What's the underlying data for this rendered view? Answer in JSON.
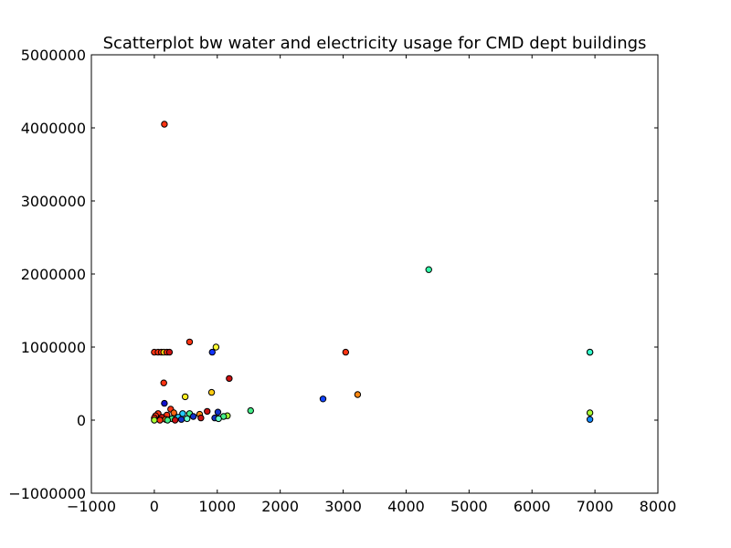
{
  "chart_data": {
    "type": "scatter",
    "title": "Scatterplot bw water and electricity usage for CMD dept buildings",
    "xlabel": "",
    "ylabel": "",
    "xlim": [
      -1000,
      8000
    ],
    "ylim": [
      -1000000,
      5000000
    ],
    "x_ticks": [
      -1000,
      0,
      1000,
      2000,
      3000,
      4000,
      5000,
      6000,
      7000,
      8000
    ],
    "x_tick_labels": [
      "−1000",
      "0",
      "1000",
      "2000",
      "3000",
      "4000",
      "5000",
      "6000",
      "7000",
      "8000"
    ],
    "y_ticks": [
      -1000000,
      0,
      1000000,
      2000000,
      3000000,
      4000000,
      5000000
    ],
    "y_tick_labels": [
      "−1000000",
      "0",
      "1000000",
      "2000000",
      "3000000",
      "4000000",
      "5000000"
    ],
    "grid": false,
    "legend": "none",
    "points": [
      {
        "x": 160,
        "y": 4050000,
        "color": "#ff3311"
      },
      {
        "x": 4360,
        "y": 2060000,
        "color": "#33ffaa"
      },
      {
        "x": 560,
        "y": 1070000,
        "color": "#ff3311"
      },
      {
        "x": 980,
        "y": 1000000,
        "color": "#ffff33"
      },
      {
        "x": 920,
        "y": 930000,
        "color": "#1133ff"
      },
      {
        "x": 0,
        "y": 930000,
        "color": "#ff3311"
      },
      {
        "x": 60,
        "y": 930000,
        "color": "#ff3311"
      },
      {
        "x": 110,
        "y": 930000,
        "color": "#ff3311"
      },
      {
        "x": 150,
        "y": 930000,
        "color": "#ffcc11"
      },
      {
        "x": 200,
        "y": 930000,
        "color": "#ff3311"
      },
      {
        "x": 240,
        "y": 930000,
        "color": "#cc1111"
      },
      {
        "x": 3040,
        "y": 930000,
        "color": "#ff3311"
      },
      {
        "x": 6920,
        "y": 930000,
        "color": "#66ffcc"
      },
      {
        "x": 6920,
        "y": 930000,
        "color": "#33ffcc"
      },
      {
        "x": 1190,
        "y": 570000,
        "color": "#cc1111"
      },
      {
        "x": 150,
        "y": 510000,
        "color": "#ff3311"
      },
      {
        "x": 910,
        "y": 380000,
        "color": "#ffcc11"
      },
      {
        "x": 3230,
        "y": 350000,
        "color": "#ff8811"
      },
      {
        "x": 490,
        "y": 320000,
        "color": "#ffee22"
      },
      {
        "x": 2680,
        "y": 290000,
        "color": "#1144ff"
      },
      {
        "x": 160,
        "y": 230000,
        "color": "#1111cc"
      },
      {
        "x": 260,
        "y": 150000,
        "color": "#ff3311"
      },
      {
        "x": 1530,
        "y": 130000,
        "color": "#44ee88"
      },
      {
        "x": 840,
        "y": 120000,
        "color": "#cc1111"
      },
      {
        "x": 1010,
        "y": 110000,
        "color": "#1133cc"
      },
      {
        "x": 6920,
        "y": 100000,
        "color": "#aaff33"
      },
      {
        "x": 310,
        "y": 100000,
        "color": "#ff6611"
      },
      {
        "x": 60,
        "y": 90000,
        "color": "#ff3311"
      },
      {
        "x": 450,
        "y": 90000,
        "color": "#22ccff"
      },
      {
        "x": 560,
        "y": 90000,
        "color": "#44ee88"
      },
      {
        "x": 720,
        "y": 80000,
        "color": "#ff8811"
      },
      {
        "x": 200,
        "y": 70000,
        "color": "#ff3311"
      },
      {
        "x": 1160,
        "y": 60000,
        "color": "#aaff33"
      },
      {
        "x": 20,
        "y": 60000,
        "color": "#ff3311"
      },
      {
        "x": 620,
        "y": 50000,
        "color": "#1133cc"
      },
      {
        "x": 1100,
        "y": 50000,
        "color": "#44ee88"
      },
      {
        "x": 380,
        "y": 40000,
        "color": "#22ccff"
      },
      {
        "x": 120,
        "y": 40000,
        "color": "#cc1111"
      },
      {
        "x": 740,
        "y": 30000,
        "color": "#cc1111"
      },
      {
        "x": 0,
        "y": 30000,
        "color": "#ff3311"
      },
      {
        "x": 960,
        "y": 30000,
        "color": "#1133cc"
      },
      {
        "x": 280,
        "y": 20000,
        "color": "#44ee88"
      },
      {
        "x": 520,
        "y": 20000,
        "color": "#66ffcc"
      },
      {
        "x": 1020,
        "y": 20000,
        "color": "#66ffcc"
      },
      {
        "x": 6920,
        "y": 10000,
        "color": "#1188ff"
      },
      {
        "x": 180,
        "y": 10000,
        "color": "#ff8811"
      },
      {
        "x": 430,
        "y": 10000,
        "color": "#1133cc"
      },
      {
        "x": 0,
        "y": 0,
        "color": "#aaff33"
      },
      {
        "x": 90,
        "y": 0,
        "color": "#ff3311"
      },
      {
        "x": 330,
        "y": 0,
        "color": "#cc1111"
      },
      {
        "x": 210,
        "y": 0,
        "color": "#44ee88"
      }
    ]
  }
}
